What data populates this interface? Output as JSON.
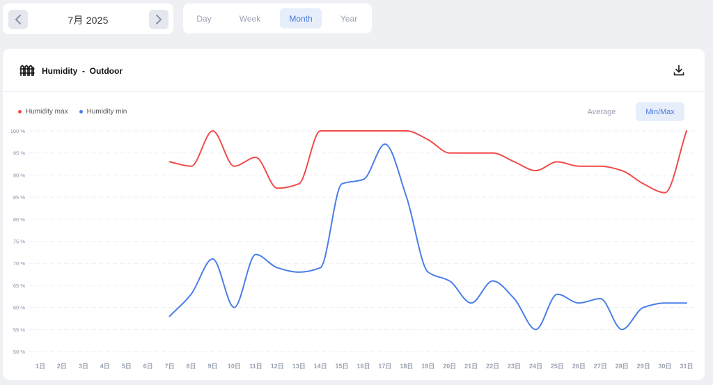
{
  "nav": {
    "month_label": "7月 2025",
    "prev_icon": "chevron-left-icon",
    "next_icon": "chevron-right-icon"
  },
  "tabs": [
    {
      "label": "Day",
      "active": false
    },
    {
      "label": "Week",
      "active": false
    },
    {
      "label": "Month",
      "active": true
    },
    {
      "label": "Year",
      "active": false
    }
  ],
  "card": {
    "icon": "fence-icon",
    "title": "Humidity  -  Outdoor",
    "download_icon": "download-icon"
  },
  "legend": [
    {
      "label": "Humidity max",
      "color": "#f04a4a"
    },
    {
      "label": "Humidity min",
      "color": "#4a7de8"
    }
  ],
  "modes": [
    {
      "label": "Average",
      "active": false
    },
    {
      "label": "Min/Max",
      "active": true
    }
  ],
  "chart_data": {
    "type": "line",
    "x": [
      "1日",
      "2日",
      "3日",
      "4日",
      "5日",
      "6日",
      "7日",
      "8日",
      "9日",
      "10日",
      "11日",
      "12日",
      "13日",
      "14日",
      "15日",
      "16日",
      "17日",
      "18日",
      "19日",
      "20日",
      "21日",
      "22日",
      "23日",
      "24日",
      "25日",
      "26日",
      "27日",
      "28日",
      "29日",
      "30日",
      "31日"
    ],
    "ylim": [
      50,
      100
    ],
    "yticks": [
      "100 %",
      "95 %",
      "90 %",
      "85 %",
      "80 %",
      "75 %",
      "70 %",
      "65 %",
      "60 %",
      "55 %",
      "50 %"
    ],
    "ytick_values": [
      100,
      95,
      90,
      85,
      80,
      75,
      70,
      65,
      60,
      55,
      50
    ],
    "grid": true,
    "legend_position": "top-left",
    "series": [
      {
        "name": "Humidity max",
        "color": "#f04a4a",
        "values": [
          null,
          null,
          null,
          null,
          null,
          null,
          93,
          92,
          100,
          92,
          94,
          87,
          88,
          100,
          100,
          100,
          100,
          100,
          98,
          95,
          95,
          95,
          93,
          91,
          93,
          92,
          92,
          91,
          88,
          86,
          100
        ]
      },
      {
        "name": "Humidity min",
        "color": "#4a7de8",
        "values": [
          null,
          null,
          null,
          null,
          null,
          null,
          58,
          63,
          71,
          60,
          72,
          69,
          68,
          69,
          88,
          89,
          97,
          85,
          68,
          66,
          61,
          66,
          62,
          55,
          63,
          61,
          62,
          55,
          60,
          61,
          61
        ]
      }
    ]
  }
}
